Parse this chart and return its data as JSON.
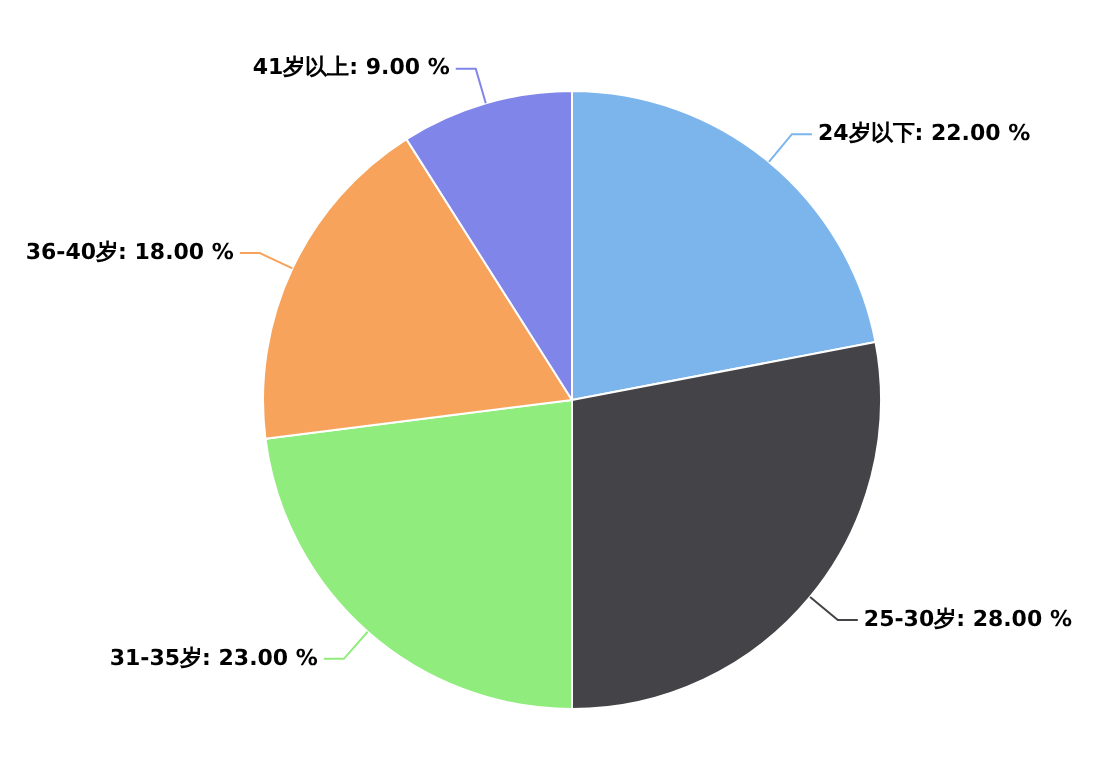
{
  "chart_data": {
    "type": "pie",
    "categories": [
      "24岁以下",
      "25-30岁",
      "31-35岁",
      "36-40岁",
      "41岁以上"
    ],
    "values": [
      22,
      28,
      23,
      18,
      9
    ],
    "value_labels": [
      "22.00 %",
      "28.00 %",
      "23.00 %",
      "18.00 %",
      "9.00 %"
    ],
    "colors": [
      "#7cb5ec",
      "#434348",
      "#90ed7d",
      "#f7a35c",
      "#8085e9"
    ],
    "legend": false
  }
}
